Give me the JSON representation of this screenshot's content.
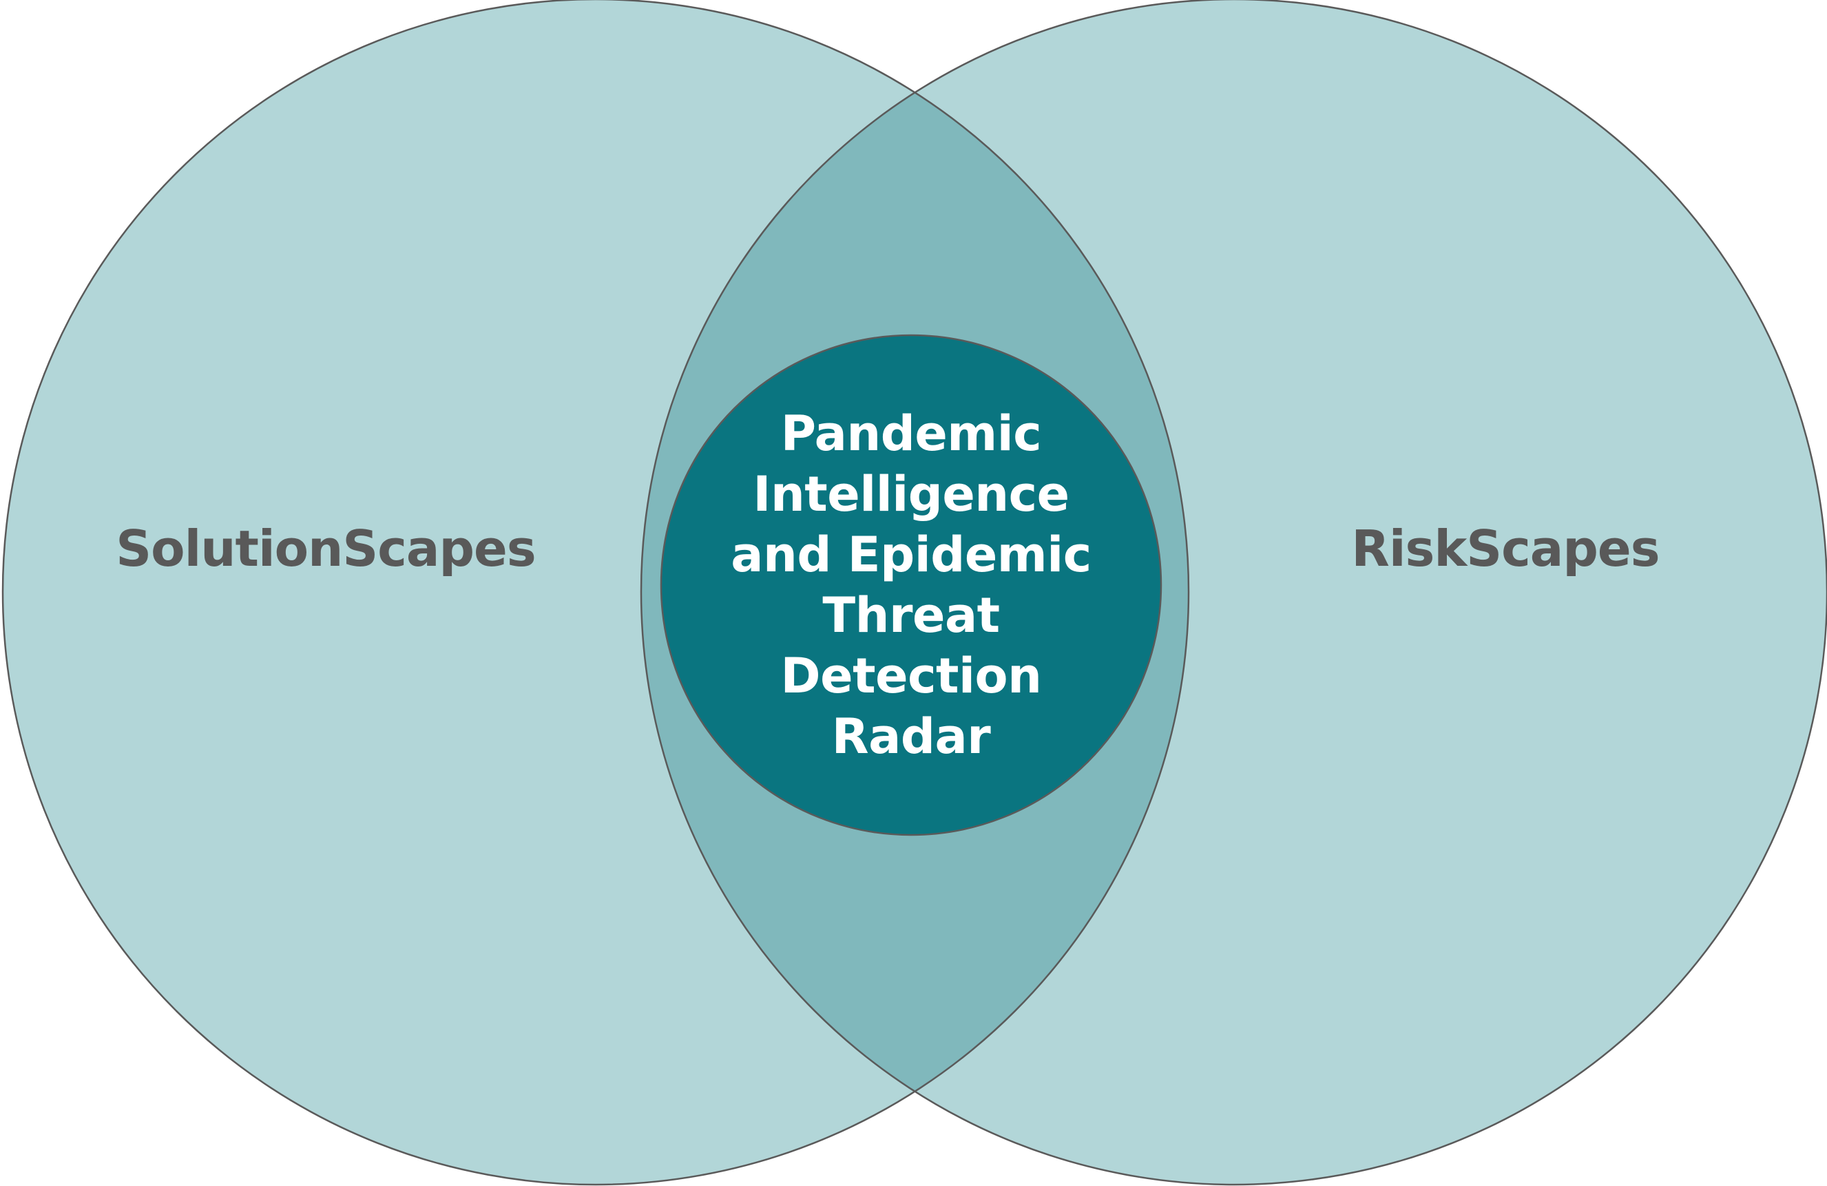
{
  "diagram": {
    "type": "venn",
    "colors": {
      "outer_fill": "#B2D6D8",
      "overlap_fill": "#80B8BC",
      "center_fill": "#0A7580",
      "outline": "#5A5A5A",
      "label_text": "#595959",
      "center_text": "#FFFFFF"
    },
    "left_set": {
      "label": "SolutionScapes"
    },
    "right_set": {
      "label": "RiskScapes"
    },
    "center": {
      "lines": [
        "Pandemic",
        "Intelligence",
        "and Epidemic",
        "Threat",
        "Detection",
        "Radar"
      ]
    }
  }
}
